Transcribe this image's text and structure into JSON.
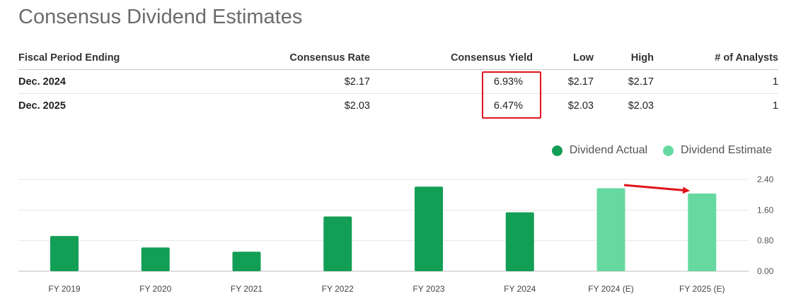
{
  "page": {
    "title": "Consensus Dividend Estimates"
  },
  "table": {
    "headers": [
      "Fiscal Period Ending",
      "Consensus Rate",
      "Consensus Yield",
      "Low",
      "High",
      "# of Analysts"
    ],
    "rows": [
      [
        "Dec. 2024",
        "$2.17",
        "6.93%",
        "$2.17",
        "$2.17",
        "1"
      ],
      [
        "Dec. 2025",
        "$2.03",
        "6.47%",
        "$2.03",
        "$2.03",
        "1"
      ]
    ]
  },
  "colors": {
    "actual": "#139e55",
    "estimate": "#66d9a0",
    "highlight": "#e0121b"
  },
  "chart_data": {
    "type": "bar",
    "categories": [
      "FY 2019",
      "FY 2020",
      "FY 2021",
      "FY 2022",
      "FY 2023",
      "FY 2024",
      "FY 2024 (E)",
      "FY 2025 (E)"
    ],
    "series": [
      {
        "name": "Dividend Actual",
        "values": [
          0.92,
          0.62,
          0.51,
          1.43,
          2.21,
          1.54,
          null,
          null
        ]
      },
      {
        "name": "Dividend Estimate",
        "values": [
          null,
          null,
          null,
          null,
          null,
          null,
          2.17,
          2.03
        ]
      }
    ],
    "yticks": [
      "0.00",
      "0.80",
      "1.60",
      "2.40"
    ],
    "ylim": [
      0,
      2.4
    ],
    "grid": true,
    "legend": "top-right",
    "annotations": [
      "arrow pointing to FY 2025 (E) estimate"
    ]
  }
}
